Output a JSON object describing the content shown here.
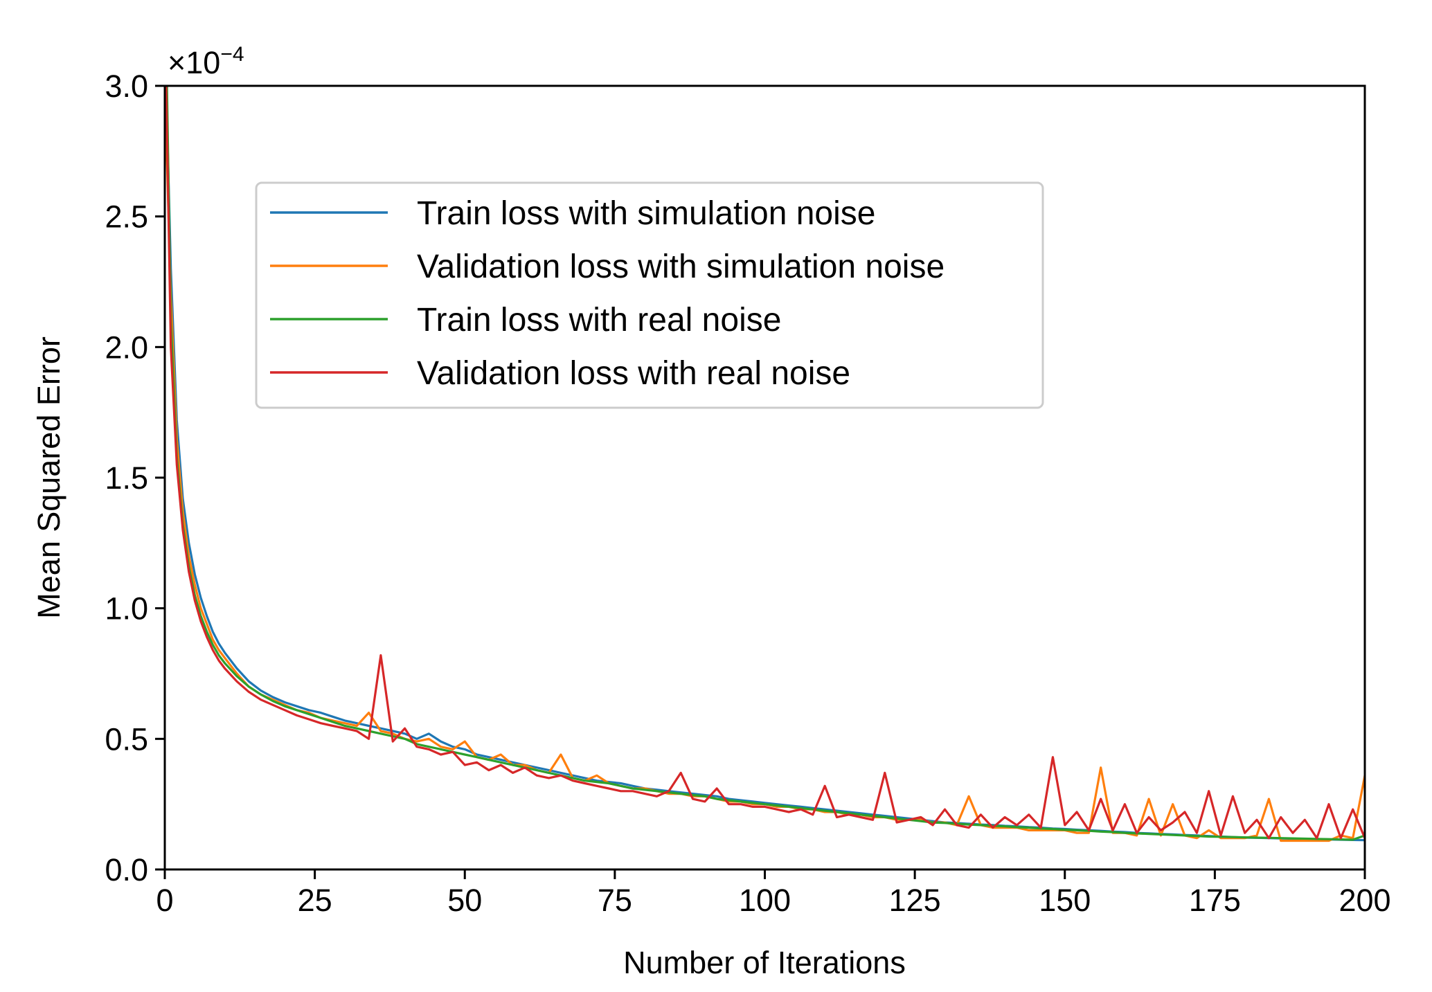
{
  "chart_data": {
    "type": "line",
    "title": "",
    "xlabel": "Number of Iterations",
    "ylabel": "Mean Squared Error",
    "xlim": [
      0,
      200
    ],
    "ylim": [
      0,
      0.0003
    ],
    "y_multiplier_base": "×10",
    "y_multiplier_exponent": "−4",
    "x_ticks": [
      0,
      25,
      50,
      75,
      100,
      125,
      150,
      175,
      200
    ],
    "x_tick_labels": [
      "0",
      "25",
      "50",
      "75",
      "100",
      "125",
      "150",
      "175",
      "200"
    ],
    "y_ticks": [
      0,
      0.5,
      1.0,
      1.5,
      2.0,
      2.5,
      3.0
    ],
    "y_tick_labels": [
      "0.0",
      "0.5",
      "1.0",
      "1.5",
      "2.0",
      "2.5",
      "3.0"
    ],
    "y_values_scale_note": "series values are in units of 1e-4",
    "grid": false,
    "legend_position": "upper-center",
    "x": [
      0,
      1,
      2,
      3,
      4,
      5,
      6,
      7,
      8,
      9,
      10,
      12,
      14,
      16,
      18,
      20,
      22,
      24,
      26,
      28,
      30,
      32,
      34,
      36,
      38,
      40,
      42,
      44,
      46,
      48,
      50,
      52,
      54,
      56,
      58,
      60,
      62,
      64,
      66,
      68,
      70,
      72,
      74,
      76,
      78,
      80,
      82,
      84,
      86,
      88,
      90,
      92,
      94,
      96,
      98,
      100,
      102,
      104,
      106,
      108,
      110,
      112,
      114,
      116,
      118,
      120,
      122,
      124,
      126,
      128,
      130,
      132,
      134,
      136,
      138,
      140,
      142,
      144,
      146,
      148,
      150,
      152,
      154,
      156,
      158,
      160,
      162,
      164,
      166,
      168,
      170,
      172,
      174,
      176,
      178,
      180,
      182,
      184,
      186,
      188,
      190,
      192,
      194,
      196,
      198,
      200
    ],
    "series": [
      {
        "name": "Train loss with simulation noise",
        "color": "#1f77b4",
        "values": [
          3.2,
          2.3,
          1.72,
          1.42,
          1.25,
          1.13,
          1.04,
          0.97,
          0.91,
          0.865,
          0.83,
          0.77,
          0.72,
          0.685,
          0.66,
          0.64,
          0.625,
          0.61,
          0.6,
          0.585,
          0.57,
          0.56,
          0.55,
          0.54,
          0.53,
          0.52,
          0.5,
          0.52,
          0.49,
          0.47,
          0.46,
          0.44,
          0.43,
          0.42,
          0.41,
          0.4,
          0.39,
          0.38,
          0.37,
          0.36,
          0.35,
          0.34,
          0.335,
          0.33,
          0.32,
          0.31,
          0.305,
          0.3,
          0.295,
          0.29,
          0.285,
          0.28,
          0.27,
          0.265,
          0.26,
          0.255,
          0.25,
          0.245,
          0.24,
          0.235,
          0.23,
          0.225,
          0.22,
          0.215,
          0.21,
          0.205,
          0.2,
          0.195,
          0.19,
          0.185,
          0.18,
          0.178,
          0.175,
          0.172,
          0.17,
          0.167,
          0.165,
          0.162,
          0.16,
          0.157,
          0.155,
          0.152,
          0.15,
          0.148,
          0.145,
          0.143,
          0.14,
          0.138,
          0.136,
          0.134,
          0.132,
          0.13,
          0.128,
          0.126,
          0.124,
          0.122,
          0.121,
          0.12,
          0.119,
          0.118,
          0.117,
          0.116,
          0.115,
          0.114,
          0.113,
          0.112
        ]
      },
      {
        "name": "Validation loss with simulation noise",
        "color": "#ff7f0e",
        "values": [
          3.0,
          2.2,
          1.65,
          1.37,
          1.2,
          1.09,
          1.0,
          0.94,
          0.88,
          0.84,
          0.81,
          0.75,
          0.7,
          0.67,
          0.65,
          0.63,
          0.61,
          0.6,
          0.58,
          0.57,
          0.56,
          0.55,
          0.6,
          0.53,
          0.52,
          0.5,
          0.49,
          0.5,
          0.47,
          0.46,
          0.49,
          0.43,
          0.42,
          0.44,
          0.4,
          0.4,
          0.38,
          0.37,
          0.44,
          0.35,
          0.34,
          0.36,
          0.33,
          0.32,
          0.31,
          0.31,
          0.3,
          0.29,
          0.29,
          0.28,
          0.28,
          0.27,
          0.26,
          0.26,
          0.25,
          0.25,
          0.24,
          0.24,
          0.23,
          0.23,
          0.22,
          0.22,
          0.21,
          0.21,
          0.2,
          0.2,
          0.19,
          0.19,
          0.19,
          0.18,
          0.18,
          0.17,
          0.28,
          0.17,
          0.16,
          0.16,
          0.16,
          0.15,
          0.15,
          0.15,
          0.15,
          0.14,
          0.14,
          0.39,
          0.14,
          0.14,
          0.13,
          0.27,
          0.13,
          0.25,
          0.13,
          0.12,
          0.15,
          0.12,
          0.12,
          0.12,
          0.13,
          0.27,
          0.11,
          0.11,
          0.11,
          0.11,
          0.11,
          0.13,
          0.12,
          0.36
        ]
      },
      {
        "name": "Train loss with real noise",
        "color": "#2ca02c",
        "values": [
          3.5,
          2.1,
          1.58,
          1.32,
          1.16,
          1.05,
          0.97,
          0.91,
          0.86,
          0.82,
          0.79,
          0.74,
          0.7,
          0.67,
          0.645,
          0.625,
          0.61,
          0.595,
          0.58,
          0.565,
          0.55,
          0.54,
          0.53,
          0.52,
          0.51,
          0.5,
          0.48,
          0.47,
          0.46,
          0.45,
          0.44,
          0.43,
          0.42,
          0.41,
          0.4,
          0.39,
          0.38,
          0.37,
          0.36,
          0.35,
          0.34,
          0.335,
          0.33,
          0.32,
          0.31,
          0.305,
          0.3,
          0.295,
          0.29,
          0.285,
          0.28,
          0.27,
          0.265,
          0.26,
          0.255,
          0.25,
          0.245,
          0.24,
          0.235,
          0.23,
          0.225,
          0.22,
          0.215,
          0.21,
          0.205,
          0.2,
          0.195,
          0.19,
          0.185,
          0.18,
          0.178,
          0.175,
          0.172,
          0.17,
          0.167,
          0.165,
          0.162,
          0.16,
          0.157,
          0.155,
          0.152,
          0.15,
          0.148,
          0.145,
          0.143,
          0.14,
          0.138,
          0.136,
          0.134,
          0.132,
          0.13,
          0.128,
          0.126,
          0.125,
          0.124,
          0.123,
          0.122,
          0.121,
          0.12,
          0.119,
          0.118,
          0.117,
          0.116,
          0.115,
          0.114,
          0.13
        ]
      },
      {
        "name": "Validation loss with real noise",
        "color": "#d62728",
        "values": [
          3.3,
          2.0,
          1.55,
          1.3,
          1.14,
          1.03,
          0.95,
          0.89,
          0.84,
          0.8,
          0.77,
          0.72,
          0.68,
          0.65,
          0.63,
          0.61,
          0.59,
          0.575,
          0.56,
          0.55,
          0.54,
          0.53,
          0.5,
          0.82,
          0.49,
          0.54,
          0.47,
          0.46,
          0.44,
          0.45,
          0.4,
          0.41,
          0.38,
          0.4,
          0.37,
          0.39,
          0.36,
          0.35,
          0.36,
          0.34,
          0.33,
          0.32,
          0.31,
          0.3,
          0.3,
          0.29,
          0.28,
          0.3,
          0.37,
          0.27,
          0.26,
          0.31,
          0.25,
          0.25,
          0.24,
          0.24,
          0.23,
          0.22,
          0.23,
          0.21,
          0.32,
          0.2,
          0.21,
          0.2,
          0.19,
          0.37,
          0.18,
          0.19,
          0.2,
          0.17,
          0.23,
          0.17,
          0.16,
          0.21,
          0.16,
          0.2,
          0.17,
          0.21,
          0.16,
          0.43,
          0.17,
          0.22,
          0.15,
          0.27,
          0.15,
          0.25,
          0.14,
          0.2,
          0.15,
          0.18,
          0.22,
          0.14,
          0.3,
          0.13,
          0.28,
          0.14,
          0.19,
          0.12,
          0.2,
          0.14,
          0.19,
          0.12,
          0.25,
          0.12,
          0.23,
          0.12
        ]
      }
    ]
  }
}
